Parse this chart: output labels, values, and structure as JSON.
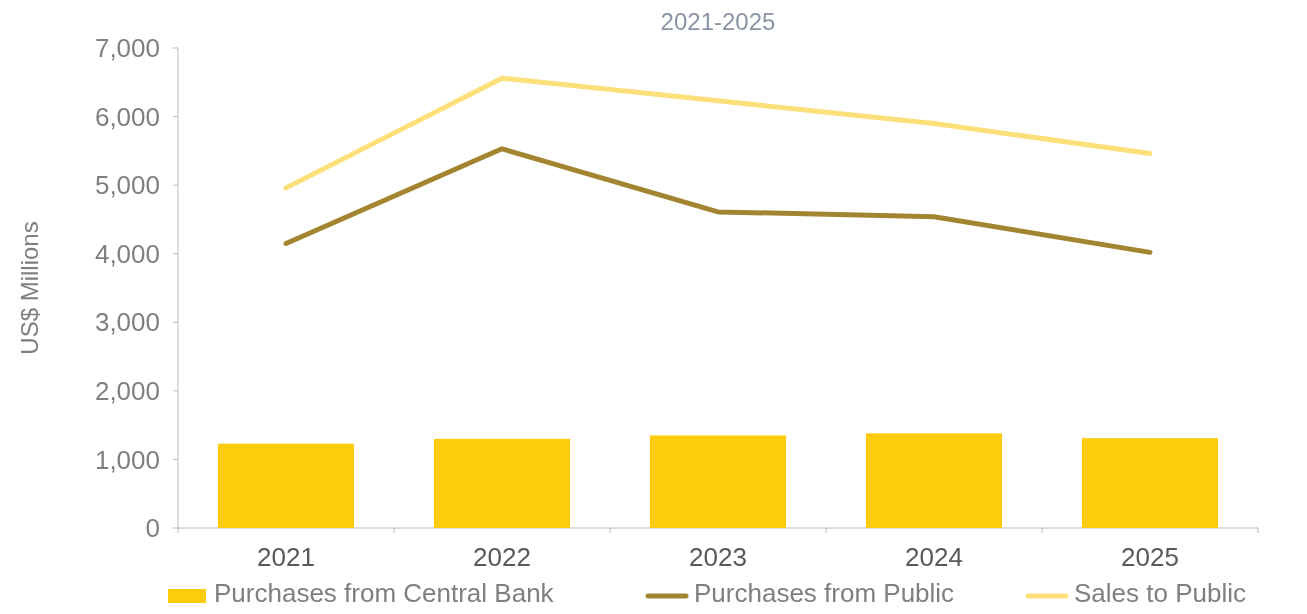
{
  "chart_data": {
    "type": "bar",
    "title": "2021-2025",
    "ylabel": "US$ Millions",
    "categories": [
      "2021",
      "2022",
      "2023",
      "2024",
      "2025"
    ],
    "series": [
      {
        "name": "Purchases from Central Bank",
        "color": "#fdcc0d",
        "values": [
          1230,
          1300,
          1350,
          1380,
          1310
        ]
      },
      {
        "name": "Purchases from Public",
        "type": "line",
        "color": "#a38531",
        "values": [
          4150,
          5530,
          4610,
          4540,
          4020
        ]
      },
      {
        "name": "Sales to Public",
        "type": "line",
        "color": "#fde07a",
        "values": [
          4960,
          6560,
          6230,
          5900,
          5460
        ]
      }
    ],
    "ylim": [
      0,
      7000
    ],
    "yticks": [
      {
        "value": 0,
        "label": "0"
      },
      {
        "value": 1000,
        "label": "1,000"
      },
      {
        "value": 2000,
        "label": "2,000"
      },
      {
        "value": 3000,
        "label": "3,000"
      },
      {
        "value": 4000,
        "label": "4,000"
      },
      {
        "value": 5000,
        "label": "5,000"
      },
      {
        "value": 6000,
        "label": "6,000"
      },
      {
        "value": 7000,
        "label": "7,000"
      }
    ],
    "grid": false,
    "legend": "bottom"
  }
}
